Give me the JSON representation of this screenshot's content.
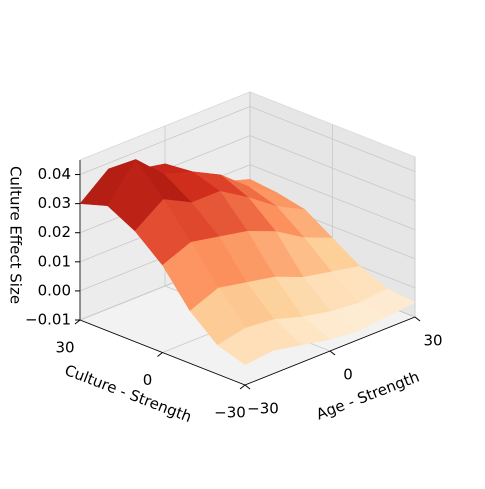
{
  "chart_data": {
    "type": "surface3d",
    "x_label": "Age - Strength",
    "y_label": "Culture - Strength",
    "z_label": "Culture Effect Size",
    "x": [
      -30,
      -20,
      -10,
      0,
      10,
      20,
      30
    ],
    "y": [
      -30,
      -20,
      -10,
      0,
      10,
      20,
      30
    ],
    "z": [
      [
        -0.003,
        -0.002,
        -0.004,
        -0.006,
        -0.007,
        -0.006,
        -0.005
      ],
      [
        0.0,
        0.002,
        0.001,
        -0.002,
        -0.004,
        -0.005,
        -0.004
      ],
      [
        0.008,
        0.012,
        0.01,
        0.008,
        0.004,
        0.002,
        0.0
      ],
      [
        0.02,
        0.024,
        0.022,
        0.02,
        0.016,
        0.01,
        0.006
      ],
      [
        0.028,
        0.035,
        0.03,
        0.03,
        0.024,
        0.017,
        0.012
      ],
      [
        0.033,
        0.045,
        0.036,
        0.033,
        0.028,
        0.02,
        0.014
      ],
      [
        0.03,
        0.038,
        0.034,
        0.032,
        0.025,
        0.018,
        0.015
      ]
    ],
    "colormap": [
      "#fff7ec",
      "#fdd49e",
      "#fc8d59",
      "#d7301f",
      "#7f0000"
    ],
    "xlim": [
      -30,
      30
    ],
    "ylim": [
      -30,
      30
    ],
    "zlim": [
      -0.01,
      0.045
    ],
    "xticks": [
      {
        "value": -30,
        "label": "−30"
      },
      0,
      30
    ],
    "yticks": [
      {
        "value": -30,
        "label": "−30"
      },
      0,
      30
    ],
    "zticks": [
      {
        "value": -0.01,
        "label": "−0.01"
      },
      {
        "value": 0,
        "label": "0.00"
      },
      0.01,
      0.02,
      0.03,
      0.04
    ],
    "grid": true
  }
}
